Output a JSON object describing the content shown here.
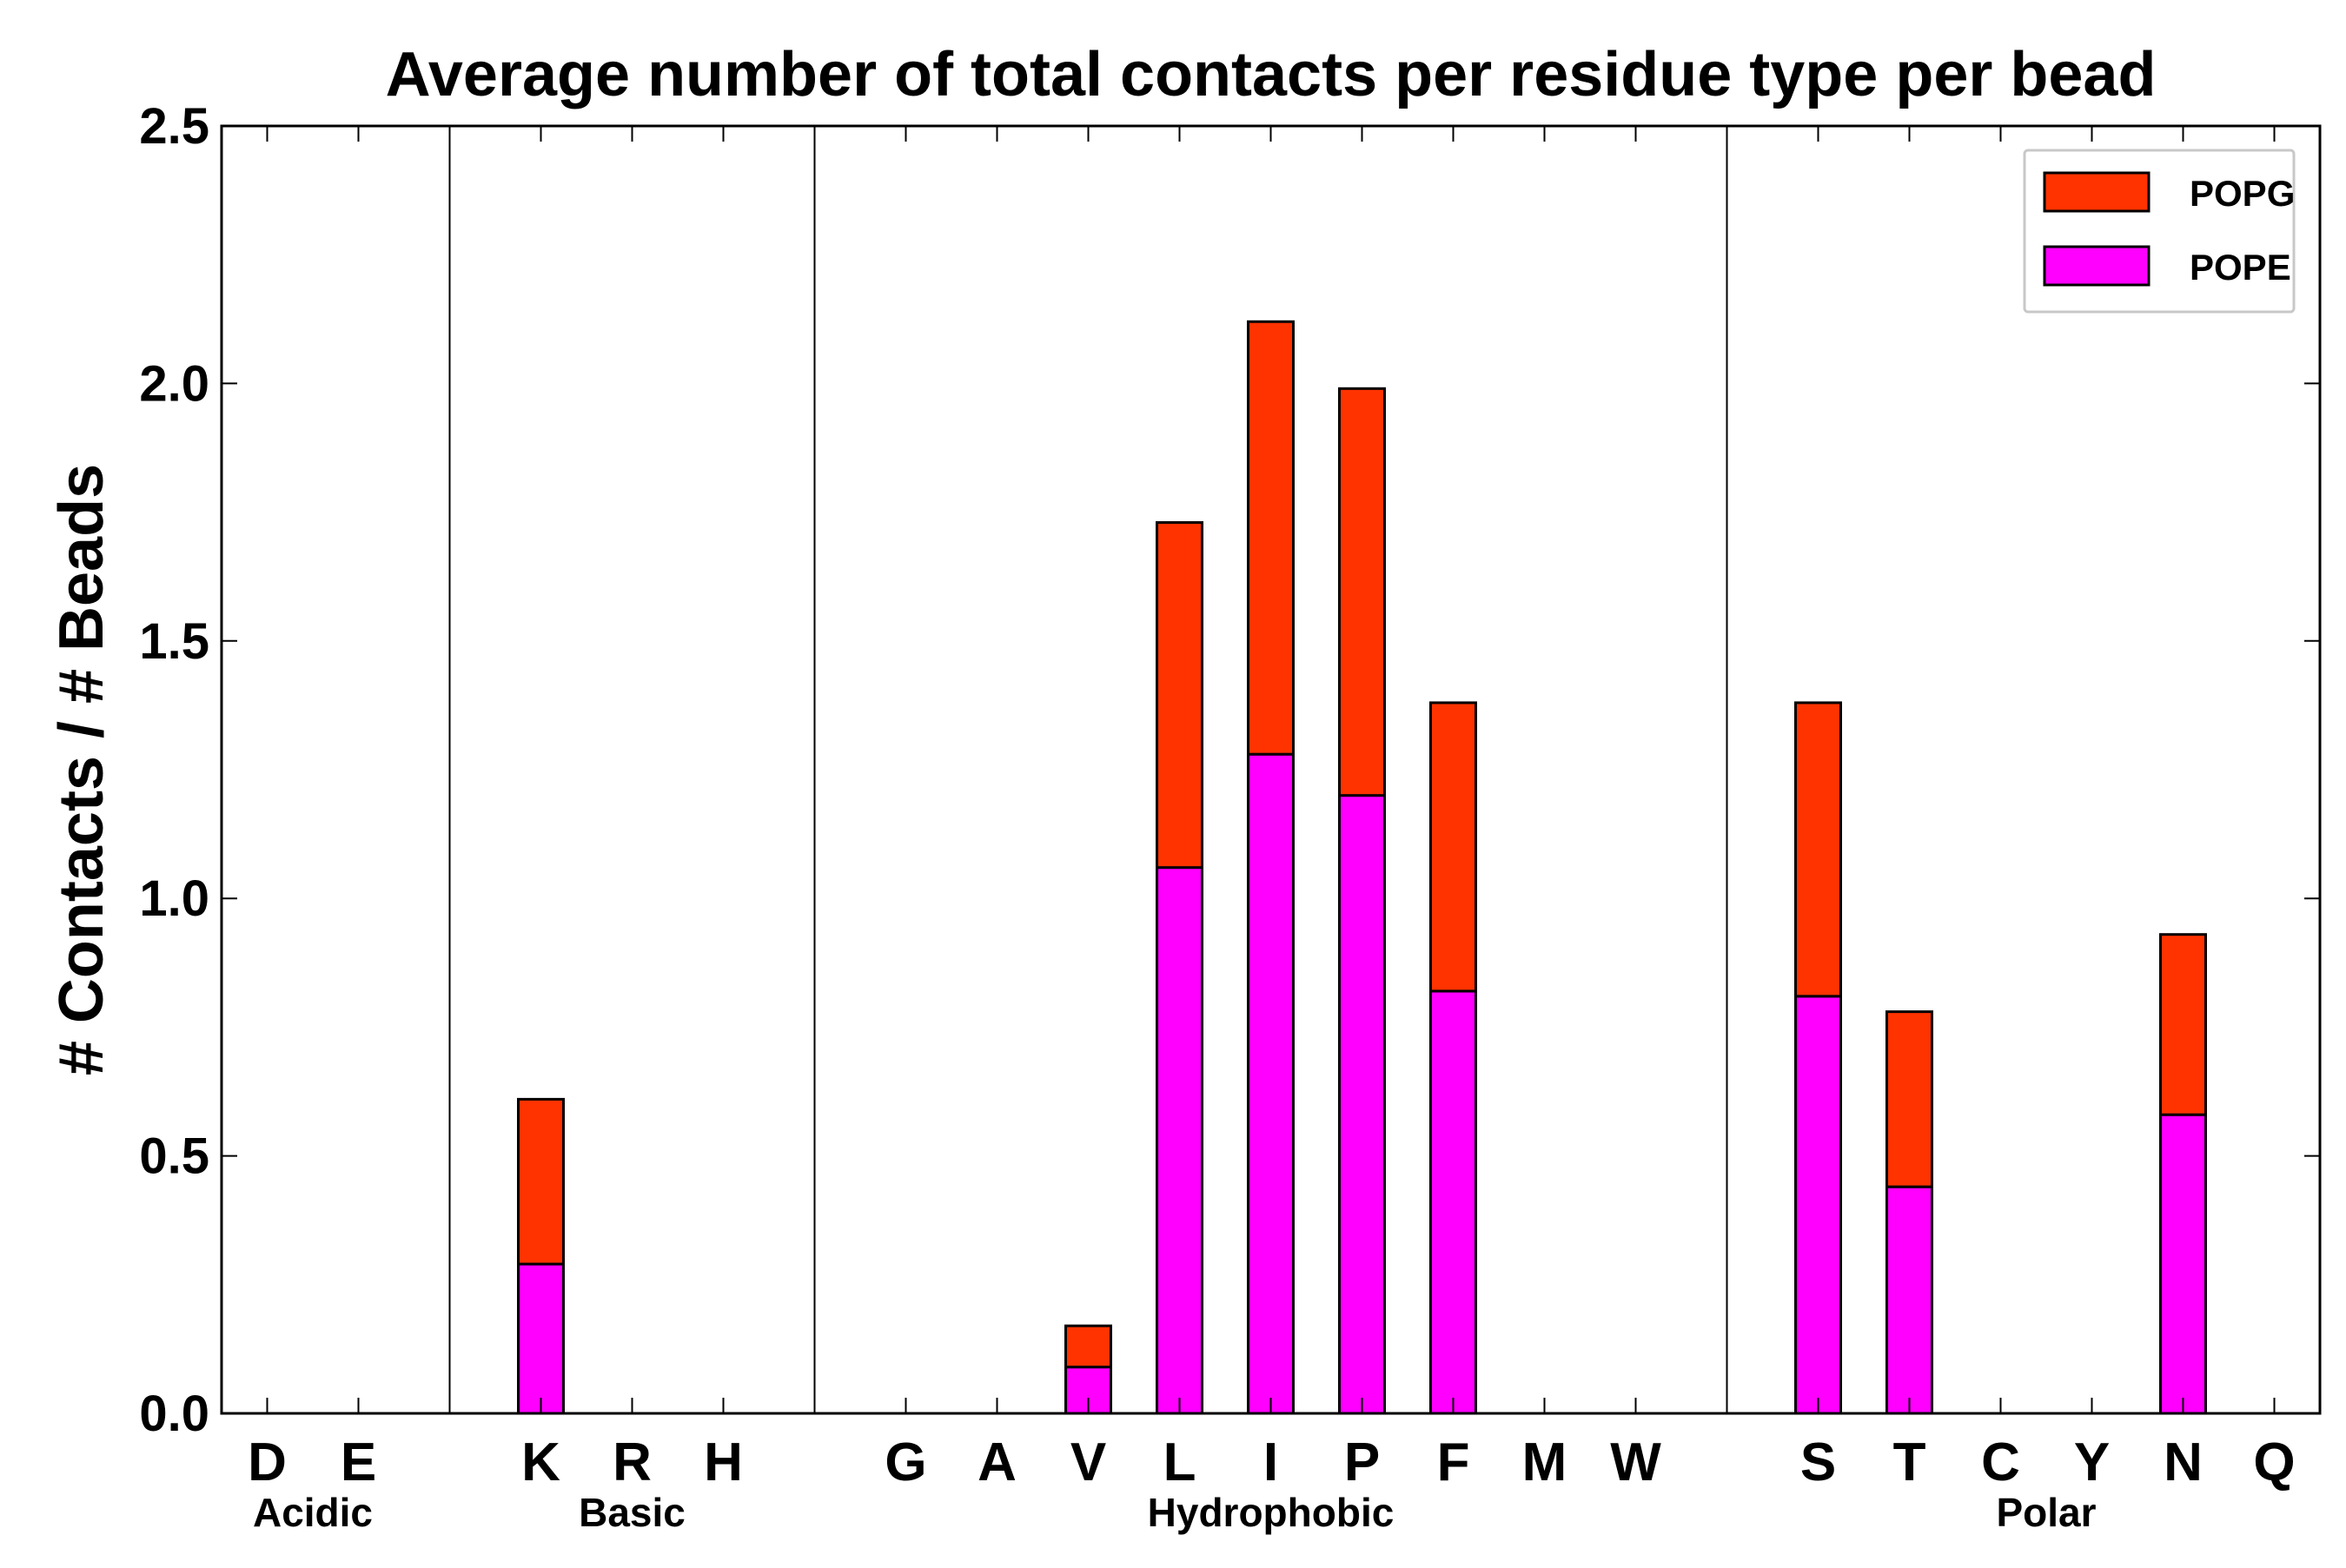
{
  "chart_data": {
    "type": "bar",
    "stacked": true,
    "title": "Average number of total contacts per residue type per bead",
    "xlabel": "",
    "ylabel": "# Contacts / # Beads",
    "ylim": [
      0,
      2.5
    ],
    "yticks": [
      "0.0",
      "0.5",
      "1.0",
      "1.5",
      "2.0",
      "2.5"
    ],
    "grid": false,
    "legend_position": "top-right",
    "categories": [
      "D",
      "E",
      "",
      "K",
      "R",
      "H",
      "",
      "G",
      "A",
      "V",
      "L",
      "I",
      "P",
      "F",
      "M",
      "W",
      "",
      "S",
      "T",
      "C",
      "Y",
      "N",
      "Q"
    ],
    "groups": [
      {
        "label": "Acidic",
        "start": 0,
        "end": 1
      },
      {
        "label": "Basic",
        "start": 3,
        "end": 5
      },
      {
        "label": "Hydrophobic",
        "start": 7,
        "end": 15
      },
      {
        "label": "Polar",
        "start": 17,
        "end": 22
      }
    ],
    "separators_after": [
      2,
      6,
      16
    ],
    "series": [
      {
        "name": "POPE",
        "color": "#ff00ff",
        "values": [
          0,
          0,
          0,
          0.29,
          0,
          0,
          0,
          0,
          0,
          0.09,
          1.06,
          1.28,
          1.2,
          0.82,
          0,
          0,
          0,
          0.81,
          0.44,
          0,
          0,
          0.58,
          0
        ]
      },
      {
        "name": "POPG",
        "color": "#ff3300",
        "values": [
          0,
          0,
          0,
          0.32,
          0,
          0,
          0,
          0,
          0,
          0.08,
          0.67,
          0.84,
          0.79,
          0.56,
          0,
          0,
          0,
          0.57,
          0.34,
          0,
          0,
          0.35,
          0
        ]
      }
    ],
    "legend": [
      {
        "label": "POPG",
        "color": "#ff3300"
      },
      {
        "label": "POPE",
        "color": "#ff00ff"
      }
    ]
  }
}
